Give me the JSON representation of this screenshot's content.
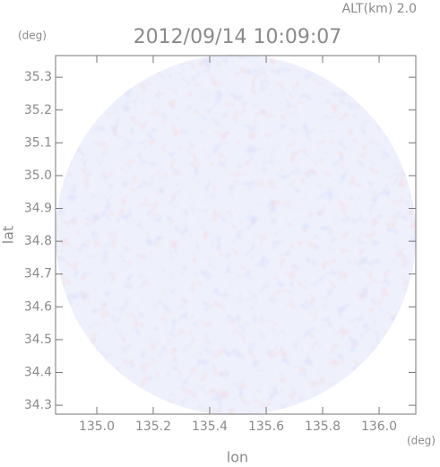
{
  "chart_data": {
    "type": "radar-map",
    "title": "2012/09/14 10:09:07",
    "altitude_label": "ALT(km) 2.0",
    "x_label": "lon",
    "y_label": "lat",
    "x_unit": "(deg)",
    "y_unit": "(deg)",
    "xlim": [
      134.854,
      136.13
    ],
    "ylim": [
      34.273,
      35.366
    ],
    "xticks": [
      {
        "value": 135,
        "label": "135.0"
      },
      135.2,
      135.4,
      135.6,
      135.8,
      {
        "value": 136,
        "label": "136.0"
      }
    ],
    "yticks": [
      34.3,
      34.4,
      34.5,
      34.6,
      34.7,
      34.8,
      34.9,
      {
        "value": 35,
        "label": "35.0"
      },
      35.1,
      35.2,
      35.3
    ]
  }
}
